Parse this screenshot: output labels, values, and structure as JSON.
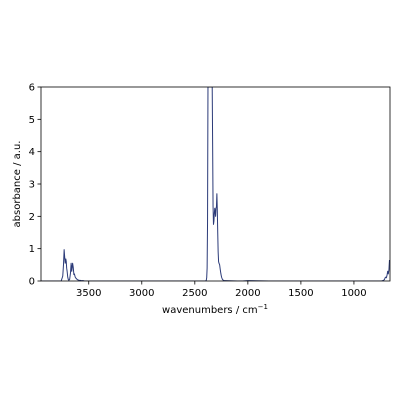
{
  "chart_data": {
    "type": "line",
    "xlabel": "wavenumbers / cm",
    "xlabel_superscript": "−1",
    "ylabel": "absorbance / a.u.",
    "xlim": [
      3950,
      660
    ],
    "ylim": [
      0,
      6
    ],
    "x_reversed": true,
    "grid": false,
    "x_ticks": [
      3500,
      3000,
      2500,
      2000,
      1500,
      1000
    ],
    "x_tick_labels": [
      "3500",
      "3000",
      "2500",
      "2000",
      "1500",
      "1000"
    ],
    "y_ticks": [
      0,
      1,
      2,
      3,
      4,
      5,
      6
    ],
    "y_tick_labels": [
      "0",
      "1",
      "2",
      "3",
      "4",
      "5",
      "6"
    ],
    "series": [
      {
        "color": "#2b3a78",
        "x": [
          3950,
          3760,
          3745,
          3738,
          3732,
          3727,
          3722,
          3716,
          3712,
          3708,
          3703,
          3698,
          3693,
          3688,
          3680,
          3672,
          3666,
          3660,
          3652,
          3646,
          3640,
          3635,
          3630,
          3625,
          3618,
          3610,
          3600,
          3590,
          3580,
          3565,
          3550,
          3540,
          3520,
          2450,
          2400,
          2392,
          2388,
          2384,
          2380,
          2376,
          2372,
          2368,
          2364,
          2358,
          2352,
          2346,
          2340,
          2336,
          2332,
          2328,
          2324,
          2320,
          2316,
          2312,
          2308,
          2304,
          2300,
          2296,
          2292,
          2288,
          2284,
          2280,
          2276,
          2272,
          2266,
          2260,
          2254,
          2248,
          2240,
          2230,
          2220,
          2100,
          2050,
          2000,
          1800,
          1200,
          900,
          740,
          720,
          712,
          706,
          700,
          694,
          688,
          682,
          676,
          670,
          665
        ],
        "y": [
          0.0,
          0.0,
          0.15,
          0.5,
          0.97,
          0.75,
          0.55,
          0.68,
          0.6,
          0.4,
          0.28,
          0.12,
          0.05,
          0.02,
          0.05,
          0.25,
          0.55,
          0.3,
          0.55,
          0.42,
          0.2,
          0.22,
          0.15,
          0.1,
          0.08,
          0.05,
          0.03,
          0.02,
          0.02,
          0.01,
          0.01,
          0.0,
          0.0,
          0.0,
          0.0,
          0.02,
          0.1,
          0.4,
          1.8,
          6.0,
          6.0,
          6.0,
          6.0,
          6.0,
          6.0,
          6.0,
          6.0,
          6.0,
          4.2,
          2.3,
          1.75,
          1.85,
          2.1,
          2.25,
          2.15,
          2.0,
          2.25,
          2.3,
          2.7,
          2.2,
          1.5,
          0.9,
          0.6,
          0.55,
          0.5,
          0.35,
          0.22,
          0.12,
          0.05,
          0.02,
          0.01,
          0.0,
          0.0,
          0.01,
          0.0,
          0.0,
          0.0,
          0.0,
          0.02,
          0.05,
          0.1,
          0.12,
          0.1,
          0.18,
          0.3,
          0.22,
          0.35,
          0.65
        ]
      }
    ]
  }
}
